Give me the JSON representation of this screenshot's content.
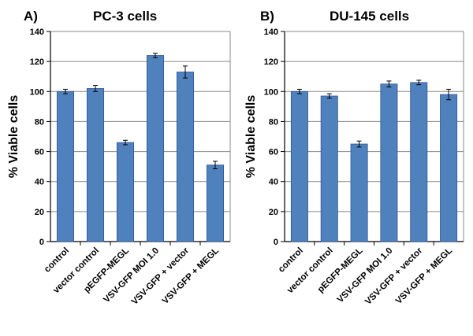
{
  "figure": {
    "bar_color": "#4F81BD",
    "bar_edge_color": "#2F5597",
    "axis_color": "#000000",
    "grid_color": "#888888"
  },
  "chart_data": [
    {
      "type": "bar",
      "panel_letter": "A)",
      "title": "PC-3 cells",
      "xlabel": "",
      "ylabel": "% Viable cells",
      "ylim": [
        0,
        140
      ],
      "yticks": [
        0,
        20,
        40,
        60,
        80,
        100,
        120,
        140
      ],
      "grid": true,
      "legend": "none",
      "categories": [
        "control",
        "vector control",
        "pEGFP-MEGL",
        "VSV-GFP MOI 1.0",
        "VSV-GFP + vector",
        "VSV-GFP + MEGL"
      ],
      "values": [
        100,
        102,
        66,
        124,
        113,
        51
      ],
      "errors": [
        1.5,
        2,
        1.5,
        1.5,
        4,
        2.5
      ]
    },
    {
      "type": "bar",
      "panel_letter": "B)",
      "title": "DU-145 cells",
      "xlabel": "",
      "ylabel": "% Viable cells",
      "ylim": [
        0,
        140
      ],
      "yticks": [
        0,
        20,
        40,
        60,
        80,
        100,
        120,
        140
      ],
      "grid": true,
      "legend": "none",
      "categories": [
        "control",
        "vector control",
        "pEGFP-MEGL",
        "VSV-GFP MOI 1.0",
        "VSV-GFP + vector",
        "VSV-GFP + MEGL"
      ],
      "values": [
        100,
        97,
        65,
        105,
        106,
        98
      ],
      "errors": [
        1.5,
        1.5,
        2,
        2,
        1.5,
        3.5
      ]
    }
  ]
}
